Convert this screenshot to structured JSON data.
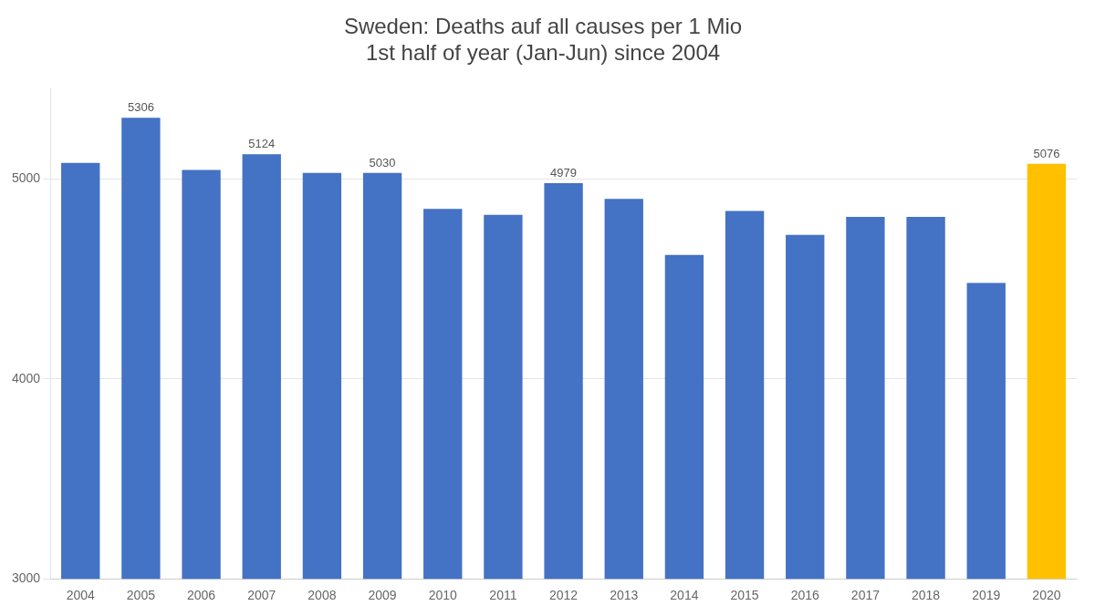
{
  "chart_data": {
    "type": "bar",
    "title": "Sweden: Deaths auf all causes per 1 Mio\n1st half of year (Jan-Jun) since 2004",
    "categories": [
      "2004",
      "2005",
      "2006",
      "2007",
      "2008",
      "2009",
      "2010",
      "2011",
      "2012",
      "2013",
      "2014",
      "2015",
      "2016",
      "2017",
      "2018",
      "2019",
      "2020"
    ],
    "values": [
      5080,
      5306,
      5045,
      5124,
      5030,
      5030,
      4850,
      4820,
      4979,
      4900,
      4620,
      4840,
      4720,
      4810,
      4810,
      4480,
      5076
    ],
    "value_labels": [
      null,
      "5306",
      null,
      "5124",
      null,
      "5030",
      null,
      null,
      "4979",
      null,
      null,
      null,
      null,
      null,
      null,
      null,
      "5076"
    ],
    "colors": [
      "#4472C4",
      "#4472C4",
      "#4472C4",
      "#4472C4",
      "#4472C4",
      "#4472C4",
      "#4472C4",
      "#4472C4",
      "#4472C4",
      "#4472C4",
      "#4472C4",
      "#4472C4",
      "#4472C4",
      "#4472C4",
      "#4472C4",
      "#4472C4",
      "#FFC000"
    ],
    "ylim": [
      3000,
      5450
    ],
    "yticks": [
      3000,
      4000,
      5000
    ],
    "grid": "y"
  }
}
